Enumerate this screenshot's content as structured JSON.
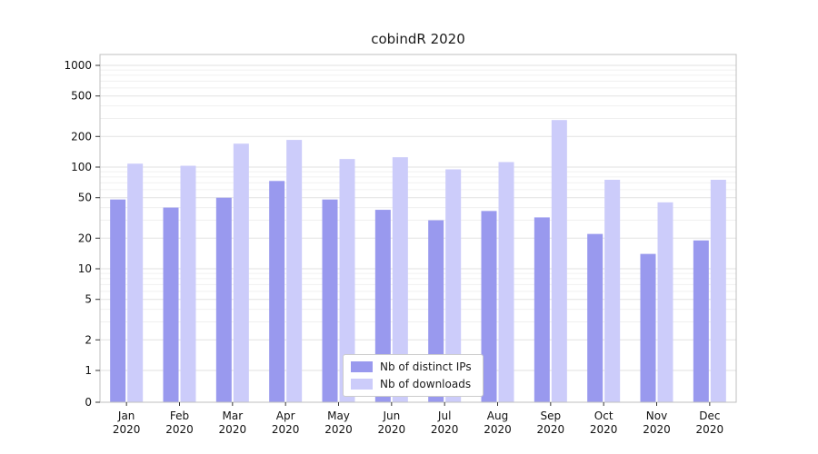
{
  "chart_data": {
    "type": "bar",
    "title": "cobindR 2020",
    "categories": [
      "Jan 2020",
      "Feb 2020",
      "Mar 2020",
      "Apr 2020",
      "May 2020",
      "Jun 2020",
      "Jul 2020",
      "Aug 2020",
      "Sep 2020",
      "Oct 2020",
      "Nov 2020",
      "Dec 2020"
    ],
    "series": [
      {
        "name": "Nb of distinct IPs",
        "color": "#9999ee",
        "values": [
          48,
          40,
          50,
          73,
          48,
          38,
          30,
          37,
          32,
          22,
          14,
          19
        ]
      },
      {
        "name": "Nb of downloads",
        "color": "#ccccfa",
        "values": [
          108,
          103,
          170,
          185,
          120,
          125,
          95,
          112,
          290,
          75,
          45,
          75
        ]
      }
    ],
    "yscale": "symlog",
    "yticks": [
      0,
      1,
      2,
      5,
      10,
      20,
      50,
      100,
      200,
      500,
      1000
    ],
    "ylim": [
      0,
      1000
    ],
    "grid": true,
    "legend_position": "bottom-center"
  }
}
